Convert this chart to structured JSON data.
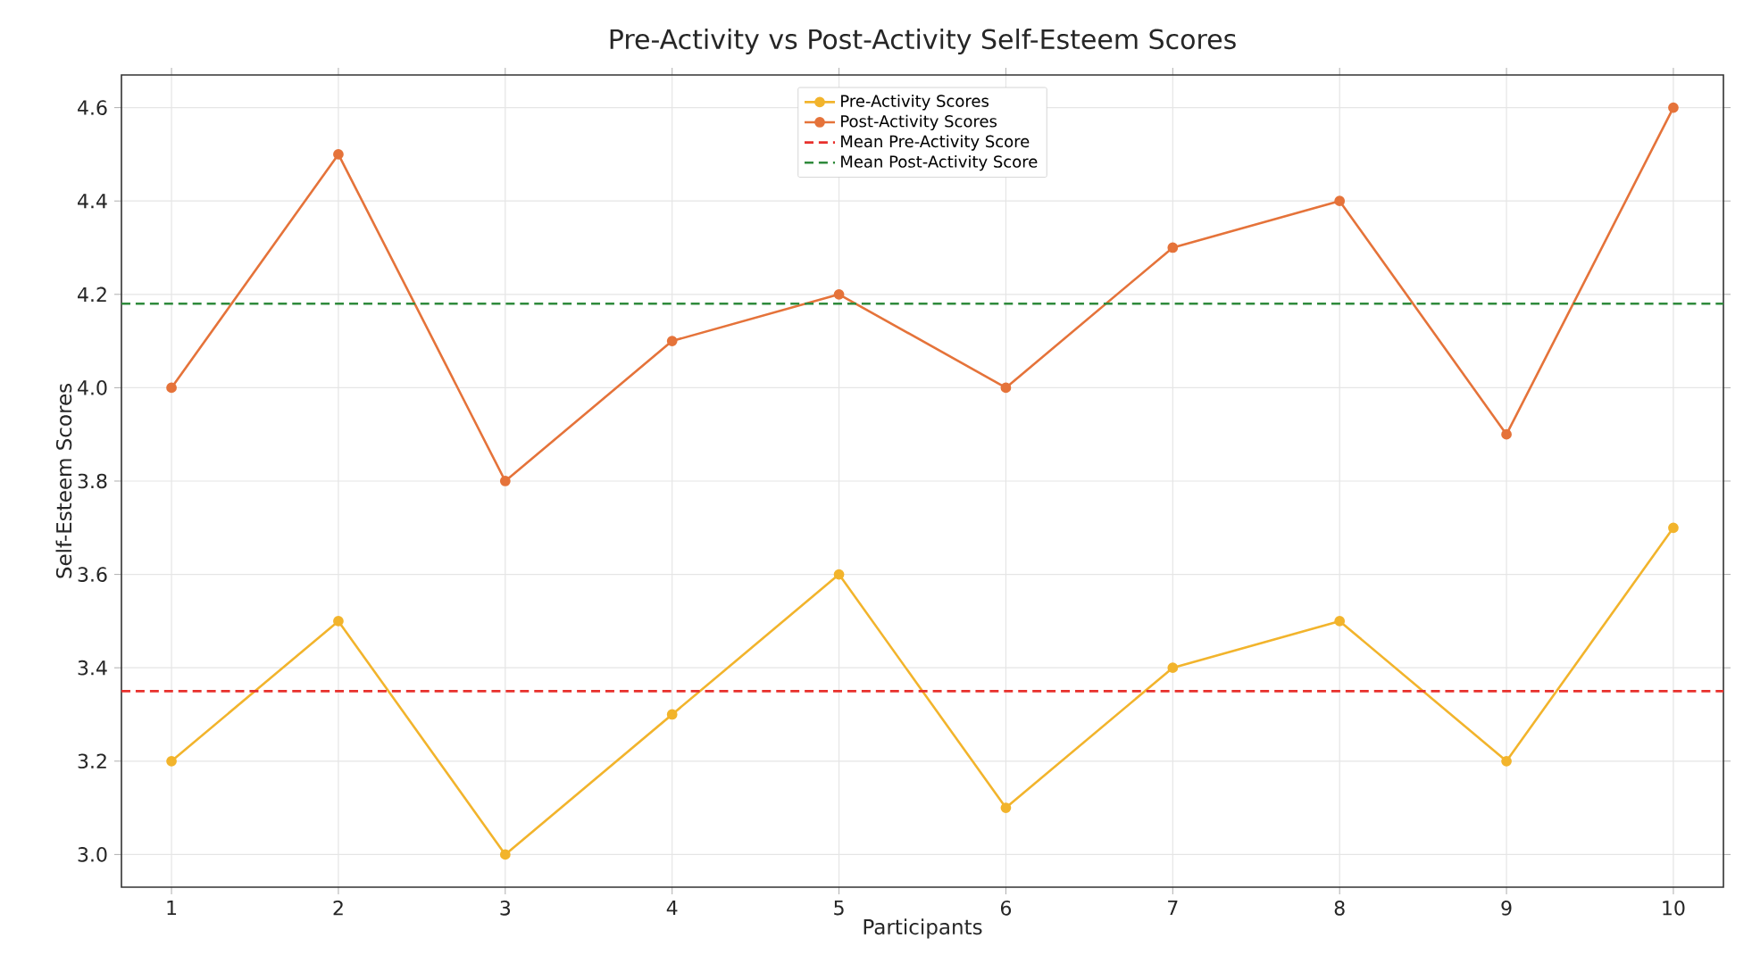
{
  "chart_data": {
    "type": "line",
    "title": "Pre-Activity vs Post-Activity Self-Esteem Scores",
    "xlabel": "Participants",
    "ylabel": "Self-Esteem Scores",
    "x": [
      1,
      2,
      3,
      4,
      5,
      6,
      7,
      8,
      9,
      10
    ],
    "series": [
      {
        "name": "Pre-Activity Scores",
        "color": "#f2b42c",
        "values": [
          3.2,
          3.5,
          3.0,
          3.3,
          3.6,
          3.1,
          3.4,
          3.5,
          3.2,
          3.7
        ]
      },
      {
        "name": "Post-Activity Scores",
        "color": "#e5733a",
        "values": [
          4.0,
          4.5,
          3.8,
          4.1,
          4.2,
          4.0,
          4.3,
          4.4,
          3.9,
          4.6
        ]
      }
    ],
    "ref_lines": [
      {
        "axis": "y",
        "value": 3.35,
        "label": "Mean Pre-Activity Score",
        "color": "#e8302c",
        "line_style": "dashed"
      },
      {
        "axis": "y",
        "value": 4.18,
        "label": "Mean Post-Activity Score",
        "color": "#2f8a3c",
        "line_style": "dashed"
      }
    ],
    "xlim": [
      0.7,
      10.3
    ],
    "ylim": [
      2.93,
      4.67
    ],
    "xticks": [
      1,
      2,
      3,
      4,
      5,
      6,
      7,
      8,
      9,
      10
    ],
    "yticks": [
      {
        "value": 3.0,
        "label": "3.0"
      },
      {
        "value": 3.2,
        "label": "3.2"
      },
      {
        "value": 3.4,
        "label": "3.4"
      },
      {
        "value": 3.6,
        "label": "3.6"
      },
      {
        "value": 3.8,
        "label": "3.8"
      },
      {
        "value": 4.0,
        "label": "4.0"
      },
      {
        "value": 4.2,
        "label": "4.2"
      },
      {
        "value": 4.4,
        "label": "4.4"
      },
      {
        "value": 4.6,
        "label": "4.6"
      }
    ],
    "grid": true,
    "legend": "top",
    "marker": "circle",
    "line_style": "solid"
  }
}
